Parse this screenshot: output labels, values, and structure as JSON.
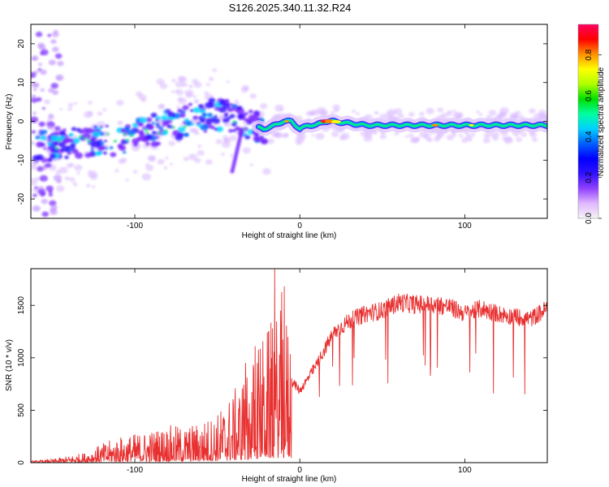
{
  "title": "S126.2025.340.11.32.R24",
  "chart_data": [
    {
      "type": "heatmap",
      "xlabel": "Height of straight line (km)",
      "ylabel": "Frequency (Hz)",
      "xlim": [
        -163,
        150
      ],
      "ylim": [
        -25,
        25
      ],
      "x_ticks": [
        -100,
        0,
        100
      ],
      "y_ticks": [
        -20,
        -10,
        0,
        10,
        20
      ],
      "colorbar": {
        "label": "Normalized spectral amplitude",
        "range": [
          0,
          0.95
        ],
        "ticks": [
          "0.0",
          "0.2",
          "0.4",
          "0.6",
          "0.8"
        ],
        "tick_values": [
          0,
          0.2,
          0.4,
          0.6,
          0.8
        ],
        "colors": [
          "#f4f4f4",
          "#e0b8ff",
          "#9040ff",
          "#3010ff",
          "#0000ff",
          "#0060ff",
          "#00d0ff",
          "#00ffa0",
          "#00e000",
          "#b0ff00",
          "#ffff00",
          "#ff9000",
          "#ff0000",
          "#ff0060"
        ]
      },
      "ridge": {
        "x": [
          -158,
          -140,
          -120,
          -100,
          -80,
          -60,
          -45,
          -38,
          -30,
          -22,
          -15,
          -10,
          -5,
          0,
          5,
          10,
          15,
          20,
          40,
          60,
          80,
          100,
          120,
          150
        ],
        "freq": [
          -6,
          -6,
          -5,
          -4,
          -1,
          1,
          2,
          0,
          -1,
          -2,
          -1,
          0,
          0,
          -2,
          -1,
          -1,
          0,
          0,
          -1,
          -1,
          -1,
          -1,
          -1,
          -1
        ]
      }
    },
    {
      "type": "line",
      "xlabel": "Height of straight line (km)",
      "ylabel": "SNR (10 * v/v)",
      "xlim": [
        -163,
        150
      ],
      "ylim": [
        0,
        1850
      ],
      "x_ticks": [
        -100,
        0,
        100
      ],
      "y_ticks": [
        0,
        500,
        1000,
        1500
      ],
      "series": [
        {
          "name": "SNR",
          "color": "#e83030",
          "x": [
            -163,
            -150,
            -140,
            -130,
            -120,
            -110,
            -100,
            -90,
            -80,
            -70,
            -60,
            -50,
            -40,
            -30,
            -25,
            -20,
            -15,
            -10,
            -5,
            0,
            5,
            10,
            15,
            20,
            25,
            30,
            40,
            50,
            60,
            70,
            80,
            90,
            100,
            110,
            120,
            130,
            140,
            150
          ],
          "values": [
            10,
            20,
            40,
            60,
            110,
            150,
            170,
            190,
            220,
            210,
            240,
            290,
            420,
            560,
            700,
            780,
            850,
            900,
            800,
            700,
            820,
            950,
            1100,
            1250,
            1320,
            1380,
            1450,
            1480,
            1560,
            1540,
            1540,
            1520,
            1450,
            1500,
            1450,
            1420,
            1400,
            1500
          ]
        }
      ]
    }
  ]
}
